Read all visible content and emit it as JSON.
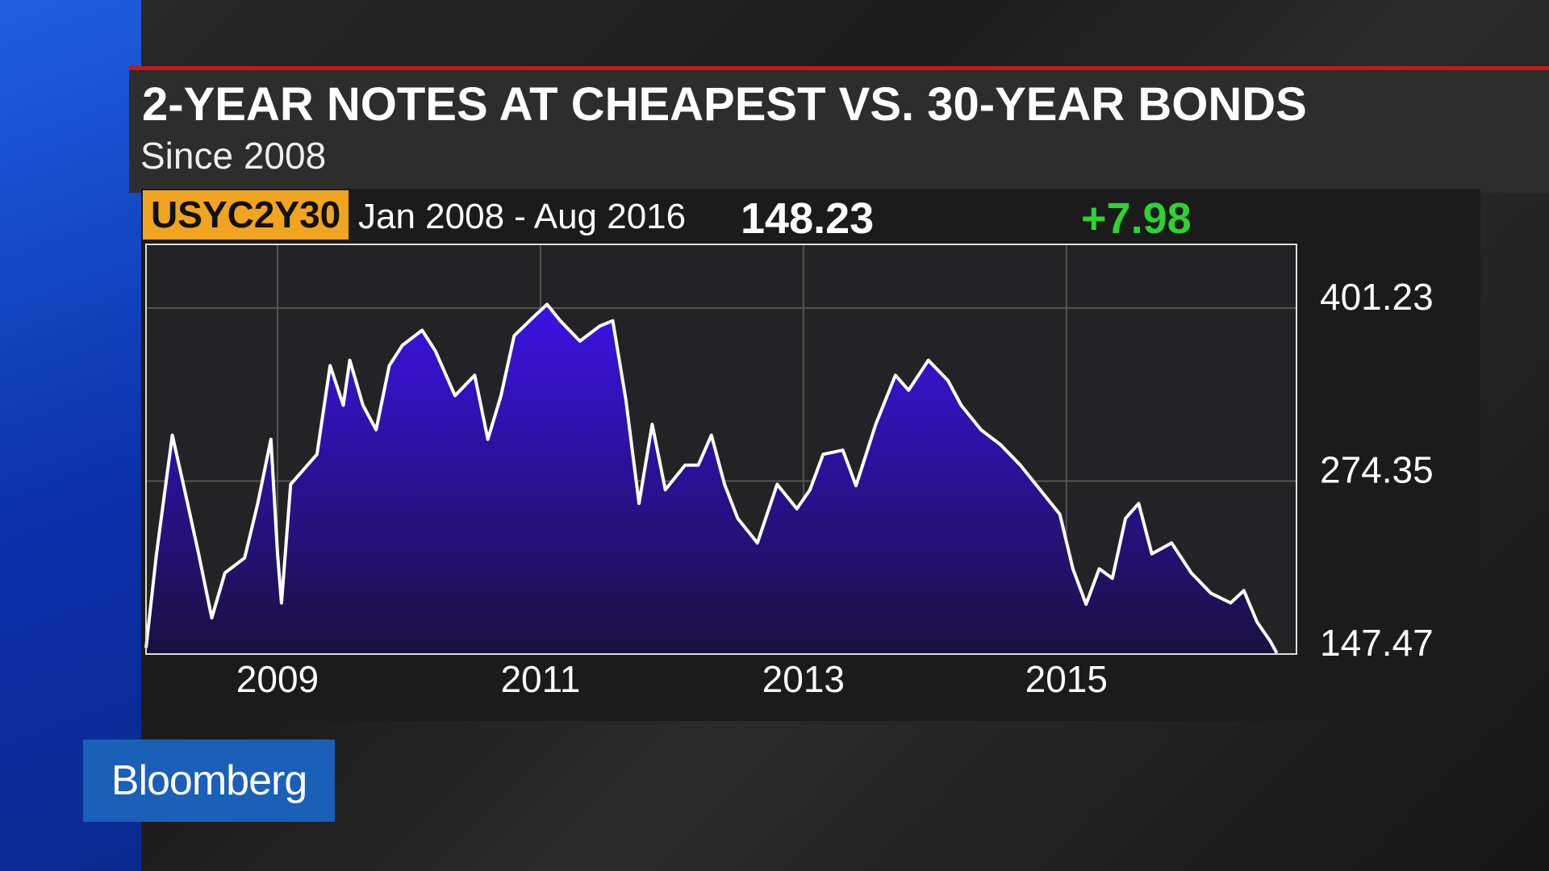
{
  "chart_data": {
    "type": "line",
    "title": "2-YEAR NOTES AT CHEAPEST VS. 30-YEAR BONDS",
    "subtitle": "Since 2008",
    "ticker": "USYC2Y30",
    "period": "Jan 2008 - Aug 2016",
    "last_value": "148.23",
    "change": "+7.98",
    "brand": "Bloomberg",
    "color": "#ffffff",
    "x": [
      2008.0,
      2008.08,
      2008.2,
      2008.3,
      2008.4,
      2008.5,
      2008.6,
      2008.75,
      2008.85,
      2008.95,
      2009.0,
      2009.03,
      2009.1,
      2009.2,
      2009.3,
      2009.4,
      2009.5,
      2009.55,
      2009.65,
      2009.75,
      2009.85,
      2009.95,
      2010.1,
      2010.2,
      2010.35,
      2010.5,
      2010.6,
      2010.7,
      2010.8,
      2010.95,
      2011.05,
      2011.15,
      2011.3,
      2011.45,
      2011.55,
      2011.65,
      2011.75,
      2011.85,
      2011.95,
      2012.1,
      2012.2,
      2012.3,
      2012.4,
      2012.5,
      2012.65,
      2012.8,
      2012.95,
      2013.05,
      2013.15,
      2013.3,
      2013.4,
      2013.55,
      2013.7,
      2013.8,
      2013.95,
      2014.1,
      2014.2,
      2014.35,
      2014.5,
      2014.65,
      2014.8,
      2014.95,
      2015.05,
      2015.15,
      2015.25,
      2015.35,
      2015.45,
      2015.55,
      2015.65,
      2015.8,
      2015.95,
      2016.1,
      2016.25,
      2016.35,
      2016.45,
      2016.55,
      2016.6
    ],
    "values": [
      152,
      221,
      308,
      265,
      221,
      174,
      207,
      218,
      258,
      305,
      221,
      185,
      272,
      283,
      294,
      359,
      330,
      363,
      330,
      312,
      359,
      374,
      385,
      370,
      337,
      352,
      305,
      337,
      381,
      395,
      404,
      392,
      377,
      388,
      392,
      334,
      258,
      316,
      268,
      286,
      286,
      308,
      272,
      247,
      229,
      272,
      254,
      268,
      294,
      297,
      271,
      316,
      352,
      341,
      363,
      348,
      330,
      312,
      301,
      286,
      268,
      250,
      210,
      184,
      210,
      203,
      247,
      258,
      221,
      229,
      207,
      192,
      185,
      194,
      171,
      157,
      148.23
    ],
    "xlim": [
      2008.0,
      2016.75
    ],
    "ylim": [
      147.47,
      448
    ],
    "xticks": [
      2009,
      2011,
      2013,
      2015
    ],
    "yticks": [
      401.23,
      274.35,
      147.47
    ],
    "grid": true
  }
}
